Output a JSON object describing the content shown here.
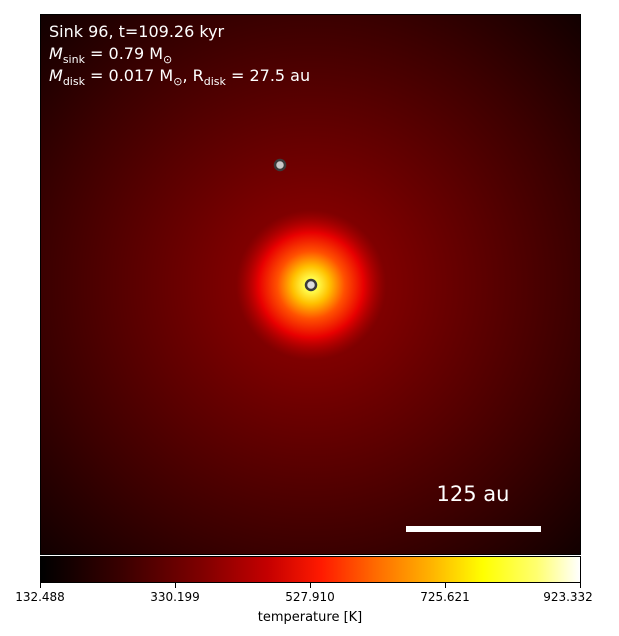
{
  "info": {
    "line1": "Sink 96, t=109.26 kyr",
    "m_sink_symbol": "M",
    "m_sink_sub": "sink",
    "m_sink_value": " = 0.79 M",
    "m_sun_sub": "⊙",
    "m_disk_symbol": "M",
    "m_disk_sub": "disk",
    "m_disk_value": " = 0.017 M",
    "m_disk_sun_sub": "⊙",
    "r_disk_prefix": ", R",
    "r_disk_sub": "disk",
    "r_disk_value": " = 27.5 au"
  },
  "scale_bar": {
    "label": "125 au"
  },
  "colorbar": {
    "label": "temperature [K]",
    "ticks": [
      "132.488",
      "330.199",
      "527.910",
      "725.621",
      "923.332"
    ]
  },
  "colors": {
    "background_dark": "#1a0000",
    "disk_core": "#ffff60",
    "marker_fill": "#c9c9c9",
    "marker_edge": "#3a3a3a"
  }
}
